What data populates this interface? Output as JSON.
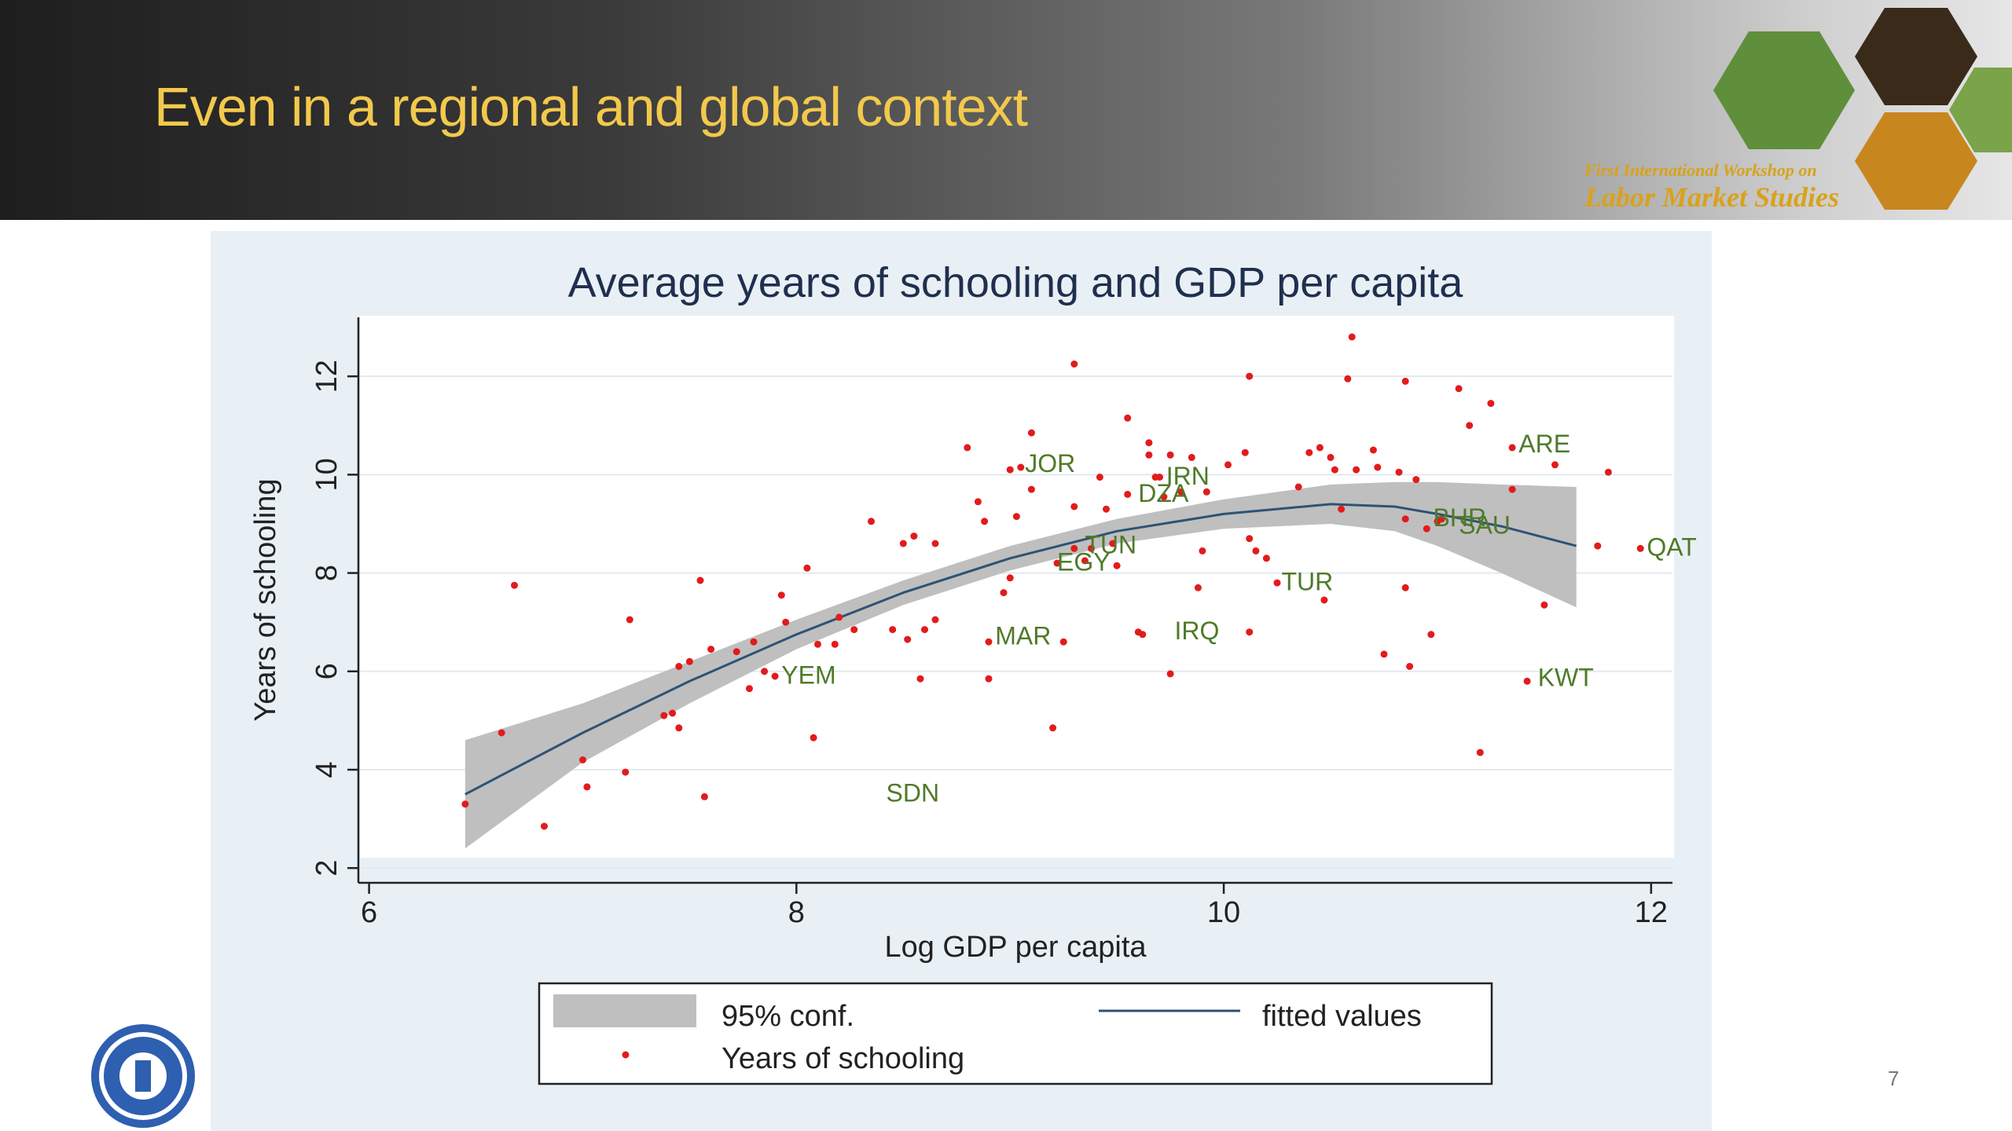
{
  "slide": {
    "title": "Even in a regional and global context",
    "page_number": "7",
    "workshop_line1": "First International Workshop on",
    "workshop_line2": "Labor Market Studies"
  },
  "colors": {
    "title": "#f2c94c",
    "chart_title": "#1f2f4f",
    "points": "#e21b1b",
    "fit_line": "#2d5375",
    "ci_band": "#bfbfbf",
    "country_labels": "#4f7a28",
    "plot_bg": "#ffffff",
    "panel_bg": "#e9f0f5"
  },
  "chart_data": {
    "type": "scatter",
    "title": "Average years of schooling and GDP per capita",
    "xlabel": "Log GDP per capita",
    "ylabel": "Years of schooling",
    "xlim": [
      5.95,
      12.1
    ],
    "ylim": [
      1.7,
      13.2
    ],
    "xticks": [
      6,
      8,
      10,
      12
    ],
    "yticks": [
      2,
      4,
      6,
      8,
      10,
      12
    ],
    "grid": "horizontal",
    "legend": {
      "placement": "bottom",
      "entries": [
        "95% conf.",
        "fitted values",
        "Years of schooling"
      ]
    },
    "fitted": {
      "x": [
        6.45,
        7.0,
        7.5,
        8.0,
        8.5,
        9.0,
        9.5,
        10.0,
        10.5,
        10.8,
        11.0,
        11.3,
        11.65
      ],
      "y": [
        3.5,
        4.75,
        5.8,
        6.75,
        7.6,
        8.3,
        8.85,
        9.2,
        9.4,
        9.35,
        9.2,
        8.95,
        8.55
      ]
    },
    "ci_upper": {
      "x": [
        6.45,
        7.0,
        7.5,
        8.0,
        8.5,
        9.0,
        9.5,
        10.0,
        10.5,
        10.8,
        11.0,
        11.3,
        11.65
      ],
      "y": [
        4.6,
        5.35,
        6.2,
        7.05,
        7.85,
        8.55,
        9.1,
        9.5,
        9.8,
        9.85,
        9.85,
        9.8,
        9.75
      ]
    },
    "ci_lower": {
      "x": [
        6.45,
        7.0,
        7.5,
        8.0,
        8.5,
        9.0,
        9.5,
        10.0,
        10.5,
        10.8,
        11.0,
        11.3,
        11.65
      ],
      "y": [
        2.4,
        4.15,
        5.35,
        6.45,
        7.35,
        8.05,
        8.6,
        8.9,
        9.0,
        8.85,
        8.55,
        8.0,
        7.3
      ]
    },
    "points": [
      [
        6.45,
        3.3
      ],
      [
        6.62,
        4.75
      ],
      [
        6.68,
        7.75
      ],
      [
        6.82,
        2.85
      ],
      [
        7.0,
        4.2
      ],
      [
        7.02,
        3.65
      ],
      [
        7.2,
        3.95
      ],
      [
        7.22,
        7.05
      ],
      [
        7.38,
        5.1
      ],
      [
        7.42,
        5.15
      ],
      [
        7.45,
        4.85
      ],
      [
        7.45,
        6.1
      ],
      [
        7.5,
        6.2
      ],
      [
        7.55,
        7.85
      ],
      [
        7.57,
        3.45
      ],
      [
        7.6,
        6.45
      ],
      [
        7.72,
        6.4
      ],
      [
        7.78,
        5.65
      ],
      [
        7.8,
        6.6
      ],
      [
        7.85,
        6.0
      ],
      [
        7.9,
        5.9
      ],
      [
        7.93,
        7.55
      ],
      [
        7.95,
        7.0
      ],
      [
        8.05,
        8.1
      ],
      [
        8.08,
        4.65
      ],
      [
        8.1,
        6.55
      ],
      [
        8.18,
        6.55
      ],
      [
        8.2,
        7.1
      ],
      [
        8.27,
        6.85
      ],
      [
        8.35,
        9.05
      ],
      [
        8.45,
        6.85
      ],
      [
        8.5,
        8.6
      ],
      [
        8.52,
        6.65
      ],
      [
        8.55,
        8.75
      ],
      [
        8.58,
        5.85
      ],
      [
        8.6,
        6.85
      ],
      [
        8.65,
        8.6
      ],
      [
        8.65,
        7.05
      ],
      [
        8.8,
        10.55
      ],
      [
        8.85,
        9.45
      ],
      [
        8.88,
        9.05
      ],
      [
        8.9,
        6.6
      ],
      [
        8.9,
        5.85
      ],
      [
        8.97,
        7.6
      ],
      [
        9.0,
        7.9
      ],
      [
        9.0,
        10.1
      ],
      [
        9.03,
        9.15
      ],
      [
        9.05,
        10.15
      ],
      [
        9.1,
        9.7
      ],
      [
        9.1,
        10.85
      ],
      [
        9.2,
        4.85
      ],
      [
        9.22,
        8.2
      ],
      [
        9.25,
        6.6
      ],
      [
        9.3,
        12.25
      ],
      [
        9.3,
        9.35
      ],
      [
        9.3,
        8.5
      ],
      [
        9.35,
        8.25
      ],
      [
        9.38,
        8.5
      ],
      [
        9.42,
        9.95
      ],
      [
        9.45,
        9.3
      ],
      [
        9.48,
        8.6
      ],
      [
        9.5,
        8.15
      ],
      [
        9.55,
        11.15
      ],
      [
        9.55,
        9.6
      ],
      [
        9.6,
        6.8
      ],
      [
        9.62,
        6.75
      ],
      [
        9.65,
        10.65
      ],
      [
        9.65,
        10.4
      ],
      [
        9.68,
        9.95
      ],
      [
        9.7,
        9.95
      ],
      [
        9.72,
        9.55
      ],
      [
        9.75,
        10.4
      ],
      [
        9.75,
        5.95
      ],
      [
        9.8,
        9.65
      ],
      [
        9.85,
        10.35
      ],
      [
        9.88,
        7.7
      ],
      [
        9.9,
        8.45
      ],
      [
        9.92,
        9.65
      ],
      [
        10.02,
        10.2
      ],
      [
        10.1,
        10.45
      ],
      [
        10.12,
        12.0
      ],
      [
        10.12,
        8.7
      ],
      [
        10.12,
        6.8
      ],
      [
        10.15,
        8.45
      ],
      [
        10.2,
        8.3
      ],
      [
        10.25,
        7.8
      ],
      [
        10.35,
        9.75
      ],
      [
        10.4,
        10.45
      ],
      [
        10.45,
        10.55
      ],
      [
        10.47,
        7.45
      ],
      [
        10.5,
        10.35
      ],
      [
        10.52,
        10.1
      ],
      [
        10.55,
        9.3
      ],
      [
        10.58,
        11.95
      ],
      [
        10.6,
        12.8
      ],
      [
        10.62,
        10.1
      ],
      [
        10.7,
        10.5
      ],
      [
        10.72,
        10.15
      ],
      [
        10.75,
        6.35
      ],
      [
        10.82,
        10.05
      ],
      [
        10.85,
        11.9
      ],
      [
        10.85,
        9.1
      ],
      [
        10.85,
        7.7
      ],
      [
        10.87,
        6.1
      ],
      [
        10.9,
        9.9
      ],
      [
        10.95,
        8.9
      ],
      [
        10.97,
        6.75
      ],
      [
        11.0,
        9.05
      ],
      [
        11.02,
        9.1
      ],
      [
        11.1,
        11.75
      ],
      [
        11.15,
        11.0
      ],
      [
        11.2,
        4.35
      ],
      [
        11.25,
        11.45
      ],
      [
        11.35,
        10.55
      ],
      [
        11.35,
        9.7
      ],
      [
        11.42,
        5.8
      ],
      [
        11.5,
        7.35
      ],
      [
        11.55,
        10.2
      ],
      [
        11.75,
        8.55
      ],
      [
        11.8,
        10.05
      ],
      [
        11.95,
        8.5
      ]
    ],
    "labels": [
      {
        "text": "JOR",
        "x": 9.07,
        "y": 10.05
      },
      {
        "text": "IRN",
        "x": 9.73,
        "y": 9.8
      },
      {
        "text": "DZA",
        "x": 9.6,
        "y": 9.45
      },
      {
        "text": "TUN",
        "x": 9.35,
        "y": 8.4
      },
      {
        "text": "EGY",
        "x": 9.22,
        "y": 8.05
      },
      {
        "text": "TUR",
        "x": 10.27,
        "y": 7.65
      },
      {
        "text": "IRQ",
        "x": 9.77,
        "y": 6.65
      },
      {
        "text": "MAR",
        "x": 8.93,
        "y": 6.55
      },
      {
        "text": "YEM",
        "x": 7.93,
        "y": 5.75
      },
      {
        "text": "SDN",
        "x": 8.42,
        "y": 3.35
      },
      {
        "text": "ARE",
        "x": 11.38,
        "y": 10.45
      },
      {
        "text": "BHR",
        "x": 10.98,
        "y": 8.95
      },
      {
        "text": "SAU",
        "x": 11.1,
        "y": 8.8
      },
      {
        "text": "QAT",
        "x": 11.98,
        "y": 8.35
      },
      {
        "text": "KWT",
        "x": 11.47,
        "y": 5.7
      }
    ]
  }
}
